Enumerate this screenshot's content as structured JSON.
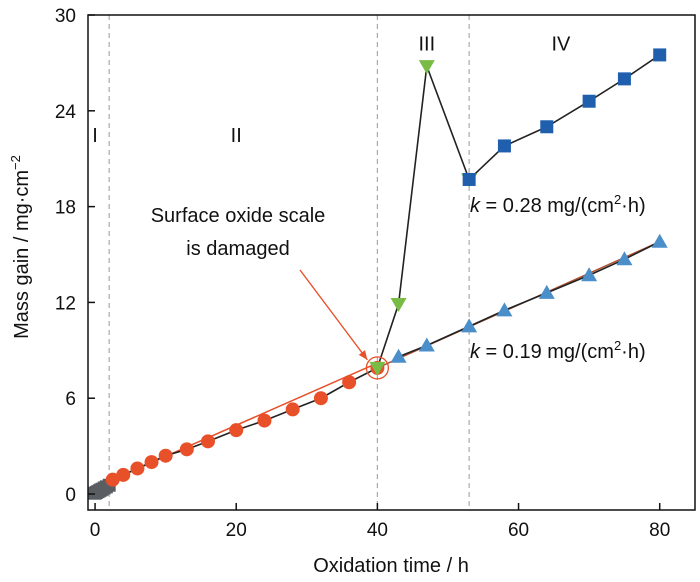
{
  "chart_data": {
    "type": "scatter",
    "xlabel": "Oxidation time / h",
    "ylabel": "Mass gain / mg·cm",
    "ylabel_sup": "−2",
    "xlim": [
      -1,
      85
    ],
    "ylim": [
      -1,
      30
    ],
    "xticks": [
      0,
      20,
      40,
      60,
      80
    ],
    "yticks": [
      0,
      6,
      12,
      18,
      24,
      30
    ],
    "grid": false,
    "stage_boundaries": [
      2,
      40,
      53
    ],
    "stages": [
      {
        "label": "I",
        "x": 0,
        "y": 22.5
      },
      {
        "label": "II",
        "x": 20,
        "y": 22.5
      },
      {
        "label": "III",
        "x": 47,
        "y": 28.2
      },
      {
        "label": "IV",
        "x": 66,
        "y": 28.2
      }
    ],
    "series": [
      {
        "marker": "square",
        "color": "#5a5e63",
        "line": "#222222",
        "x": [
          0,
          0.2,
          0.4,
          0.6,
          0.8,
          1.0,
          1.3,
          1.6,
          2.0
        ],
        "y": [
          0.05,
          0.1,
          0.15,
          0.2,
          0.25,
          0.3,
          0.38,
          0.45,
          0.55
        ]
      },
      {
        "marker": "circle",
        "color": "#e8502a",
        "line": "#222222",
        "x": [
          2.5,
          4,
          6,
          8,
          10,
          13,
          16,
          20,
          24,
          28,
          32,
          36,
          40
        ],
        "y": [
          0.9,
          1.2,
          1.6,
          2.0,
          2.4,
          2.8,
          3.3,
          4.0,
          4.6,
          5.3,
          6.0,
          7.0,
          7.9
        ]
      },
      {
        "marker": "triangle-down",
        "color": "#78bc45",
        "line": "#222222",
        "x": [
          40,
          43,
          47,
          53
        ],
        "y": [
          7.9,
          11.9,
          26.8,
          19.7
        ]
      },
      {
        "marker": "square",
        "color": "#1f5fae",
        "line": "#222222",
        "x": [
          53,
          58,
          64,
          70,
          75,
          80
        ],
        "y": [
          19.7,
          21.8,
          23.0,
          24.6,
          26.0,
          27.5
        ]
      },
      {
        "marker": "triangle-up",
        "color": "#4a8fc9",
        "line": "#222222",
        "x": [
          43,
          47,
          53,
          58,
          64,
          70,
          75,
          80
        ],
        "y": [
          8.6,
          9.3,
          10.5,
          11.5,
          12.6,
          13.7,
          14.7,
          15.8
        ]
      }
    ],
    "fit_lines": [
      {
        "color": "#e8502a",
        "x": [
          2.5,
          40
        ],
        "y": [
          0.9,
          8.2
        ]
      },
      {
        "color": "#b05030",
        "x": [
          40,
          80
        ],
        "y": [
          7.9,
          15.8
        ]
      }
    ],
    "annotations": {
      "damaged_line1": "Surface oxide scale",
      "damaged_line2": "is damaged",
      "damaged_point": {
        "x": 40,
        "y": 7.9
      },
      "k_upper_pre": "k",
      "k_upper_mid": " = 0.28 mg/(cm",
      "k_upper_sup": "2",
      "k_upper_post": "·h)",
      "k_lower_pre": "k",
      "k_lower_mid": " = 0.19 mg/(cm",
      "k_lower_sup": "2",
      "k_lower_post": "·h)"
    }
  }
}
